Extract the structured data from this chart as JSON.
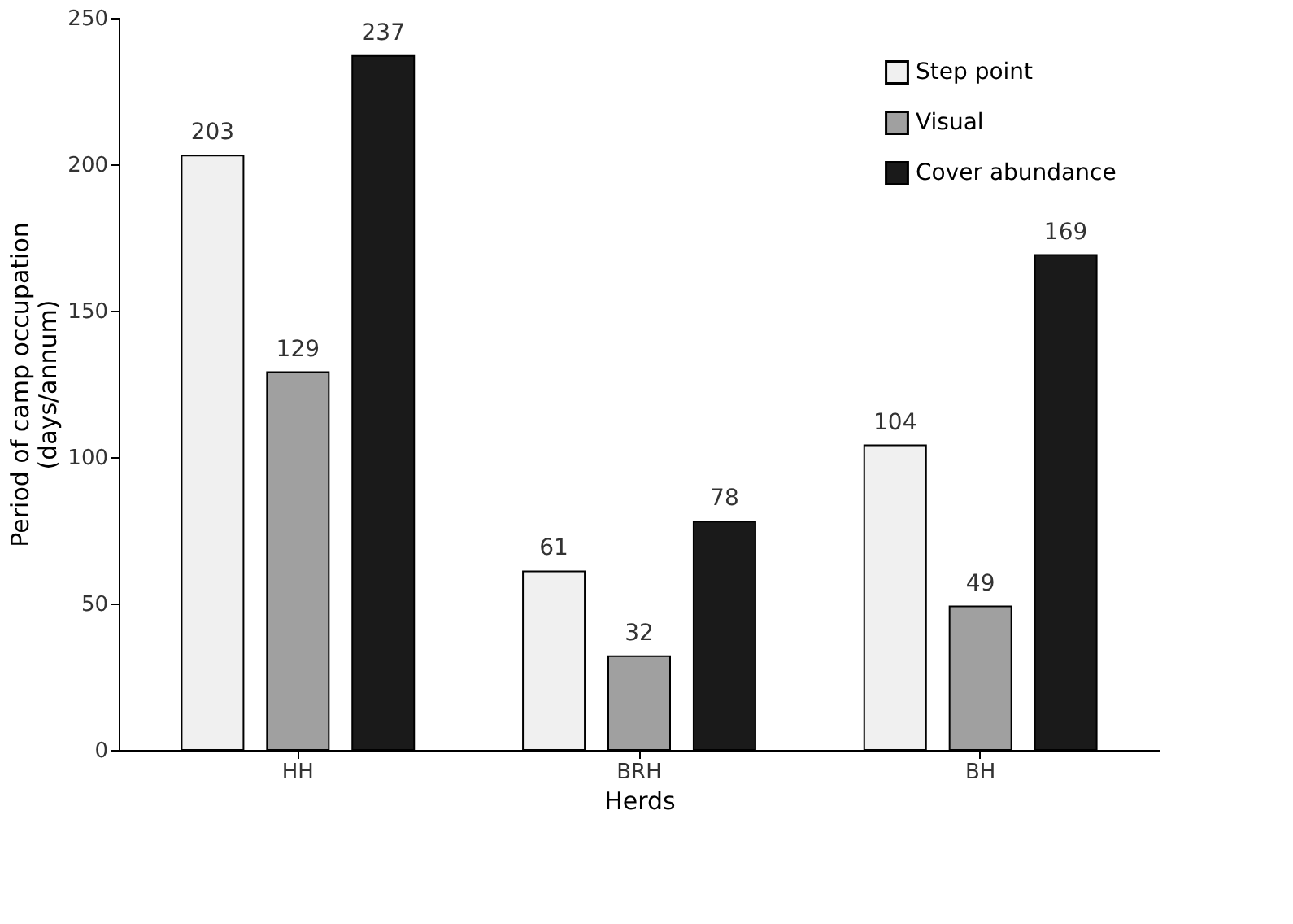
{
  "chart_data": {
    "type": "bar",
    "xlabel": "Herds",
    "ylabel": "Period of camp occupation\n(days/annum)",
    "categories": [
      "HH",
      "BRH",
      "BH"
    ],
    "series": [
      {
        "name": "Step point",
        "color": "#f0f0f0",
        "values": [
          203,
          61,
          104
        ]
      },
      {
        "name": "Visual",
        "color": "#a0a0a0",
        "values": [
          129,
          32,
          49
        ]
      },
      {
        "name": "Cover abundance",
        "color": "#1a1a1a",
        "values": [
          237,
          78,
          169
        ]
      }
    ],
    "ylim": [
      0,
      250
    ],
    "yticks": [
      0,
      50,
      100,
      150,
      200,
      250
    ],
    "grid": false,
    "legend": "top right",
    "data_labels": true
  }
}
